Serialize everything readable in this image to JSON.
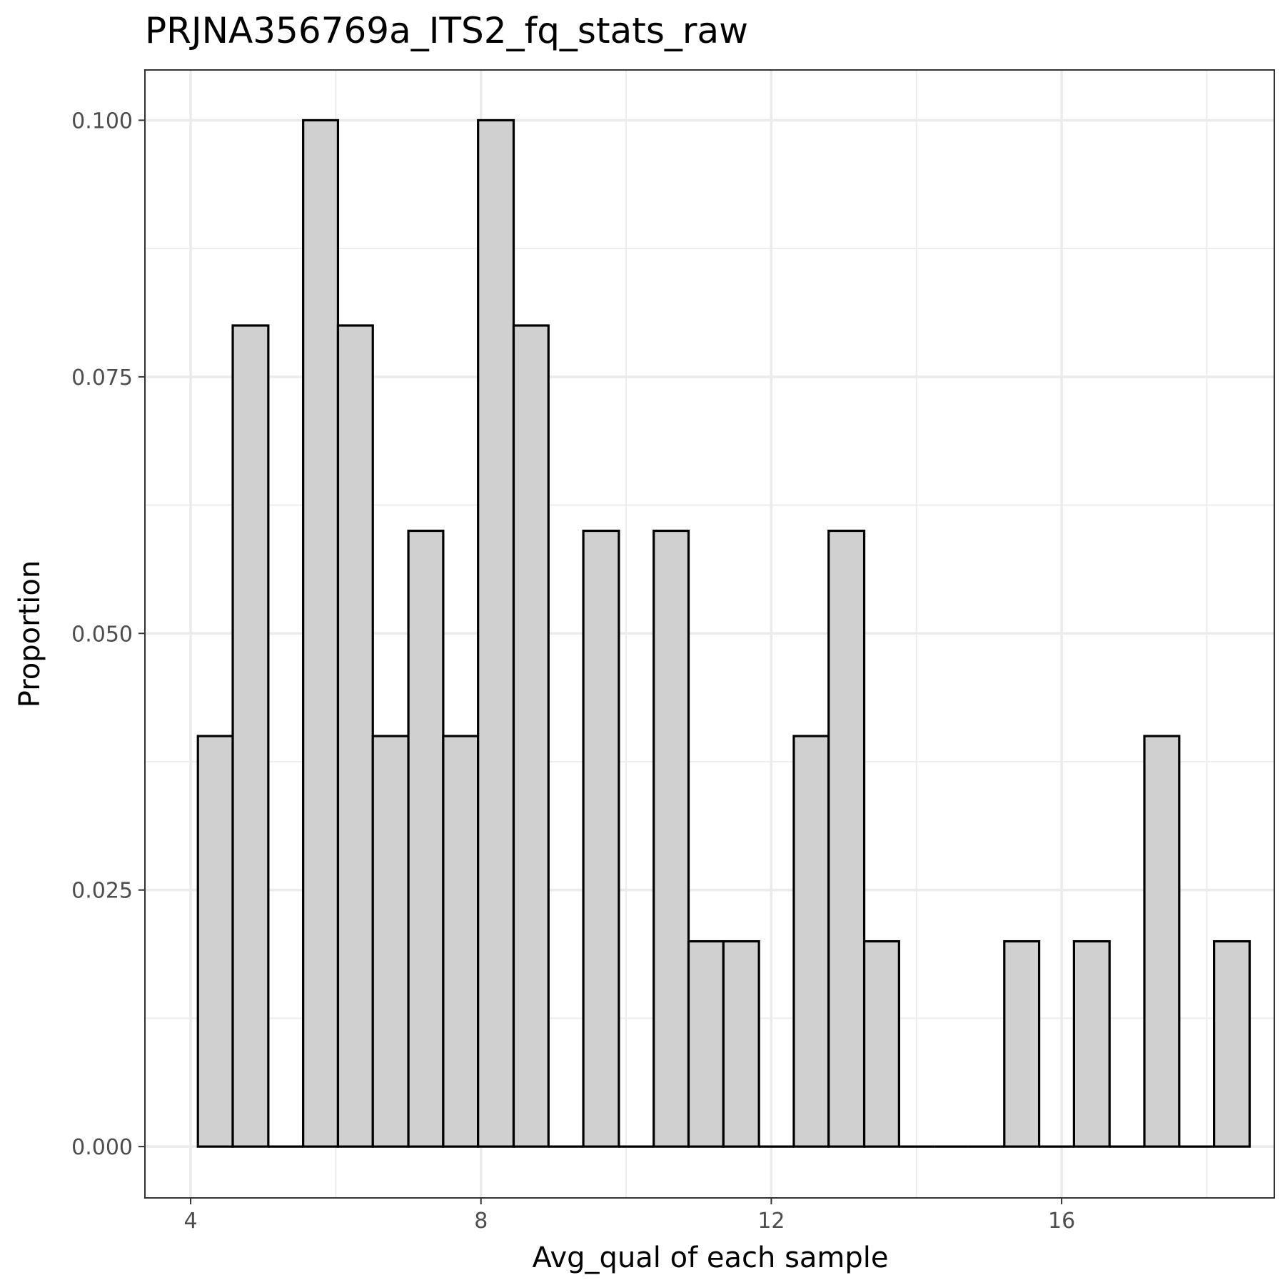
{
  "chart_data": {
    "type": "bar",
    "title": "PRJNA356769a_ITS2_fq_stats_raw",
    "xlabel": "Avg_qual of each sample",
    "ylabel": "Proportion",
    "xlim": [
      3.37,
      18.93
    ],
    "ylim": [
      -0.005,
      0.1049
    ],
    "x_ticks": [
      4,
      8,
      12,
      16
    ],
    "x_tick_labels": [
      "4",
      "8",
      "12",
      "16"
    ],
    "y_ticks": [
      0.0,
      0.025,
      0.05,
      0.075,
      0.1
    ],
    "y_tick_labels": [
      "0.000",
      "0.025",
      "0.050",
      "0.075",
      "0.100"
    ],
    "grid": true,
    "bin_width": 0.4828,
    "bins": [
      {
        "x0": 4.1,
        "x1": 4.58,
        "value": 0.04
      },
      {
        "x0": 4.58,
        "x1": 5.07,
        "value": 0.08
      },
      {
        "x0": 5.07,
        "x1": 5.55,
        "value": 0.0
      },
      {
        "x0": 5.55,
        "x1": 6.03,
        "value": 0.1
      },
      {
        "x0": 6.03,
        "x1": 6.51,
        "value": 0.08
      },
      {
        "x0": 6.51,
        "x1": 7.0,
        "value": 0.04
      },
      {
        "x0": 7.0,
        "x1": 7.48,
        "value": 0.06
      },
      {
        "x0": 7.48,
        "x1": 7.96,
        "value": 0.04
      },
      {
        "x0": 7.96,
        "x1": 8.45,
        "value": 0.1
      },
      {
        "x0": 8.45,
        "x1": 8.93,
        "value": 0.08
      },
      {
        "x0": 8.93,
        "x1": 9.41,
        "value": 0.0
      },
      {
        "x0": 9.41,
        "x1": 9.9,
        "value": 0.06
      },
      {
        "x0": 9.9,
        "x1": 10.38,
        "value": 0.0
      },
      {
        "x0": 10.38,
        "x1": 10.86,
        "value": 0.06
      },
      {
        "x0": 10.86,
        "x1": 11.34,
        "value": 0.02
      },
      {
        "x0": 11.34,
        "x1": 11.83,
        "value": 0.02
      },
      {
        "x0": 11.83,
        "x1": 12.31,
        "value": 0.0
      },
      {
        "x0": 12.31,
        "x1": 12.79,
        "value": 0.04
      },
      {
        "x0": 12.79,
        "x1": 13.28,
        "value": 0.06
      },
      {
        "x0": 13.28,
        "x1": 13.76,
        "value": 0.02
      },
      {
        "x0": 13.76,
        "x1": 14.24,
        "value": 0.0
      },
      {
        "x0": 14.24,
        "x1": 14.72,
        "value": 0.0
      },
      {
        "x0": 14.72,
        "x1": 15.21,
        "value": 0.0
      },
      {
        "x0": 15.21,
        "x1": 15.69,
        "value": 0.02
      },
      {
        "x0": 15.69,
        "x1": 16.17,
        "value": 0.0
      },
      {
        "x0": 16.17,
        "x1": 16.66,
        "value": 0.02
      },
      {
        "x0": 16.66,
        "x1": 17.14,
        "value": 0.0
      },
      {
        "x0": 17.14,
        "x1": 17.62,
        "value": 0.04
      },
      {
        "x0": 17.62,
        "x1": 18.1,
        "value": 0.0
      },
      {
        "x0": 18.1,
        "x1": 18.59,
        "value": 0.02
      }
    ],
    "colors": {
      "bar_fill": "#d0d0d0",
      "bar_outline": "#000000",
      "grid": "#ebebeb",
      "panel_border": "#333333",
      "tick_label": "#4d4d4d"
    }
  }
}
